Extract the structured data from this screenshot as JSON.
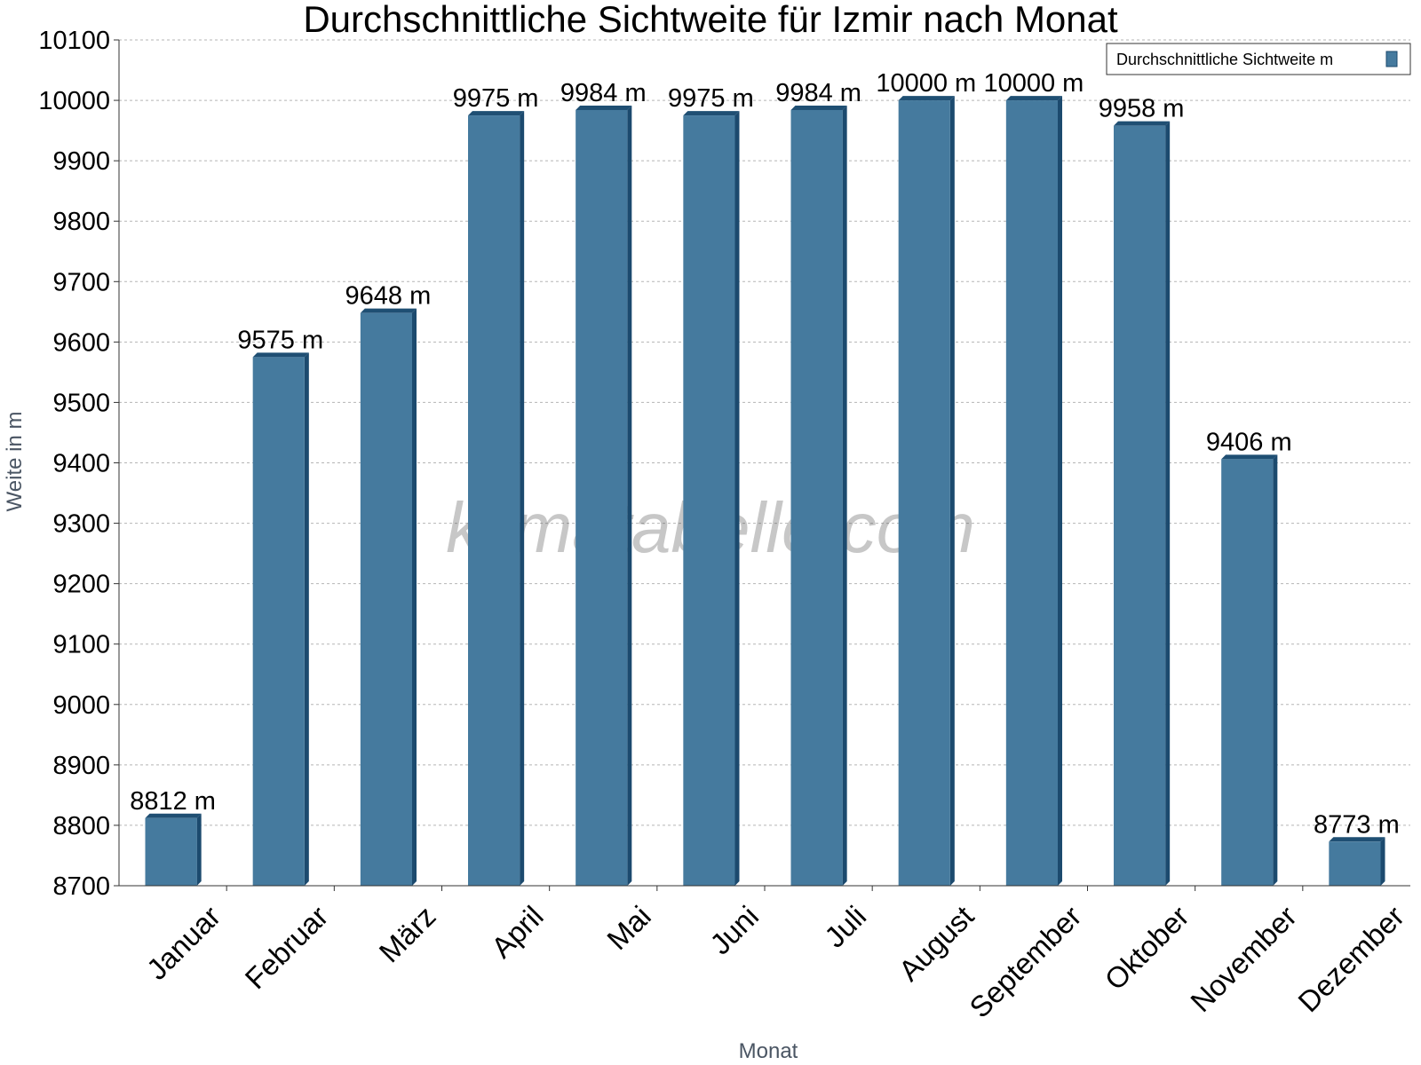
{
  "chart_data": {
    "type": "bar",
    "title": "Durchschnittliche Sichtweite für Izmir nach Monat",
    "xlabel": "Monat",
    "ylabel": "Weite in m",
    "categories": [
      "Januar",
      "Februar",
      "März",
      "April",
      "Mai",
      "Juni",
      "Juli",
      "August",
      "September",
      "Oktober",
      "November",
      "Dezember"
    ],
    "series": [
      {
        "name": "Durchschnittliche Sichtweite m",
        "values": [
          8812,
          9575,
          9648,
          9975,
          9984,
          9975,
          9984,
          10000,
          10000,
          9958,
          9406,
          8773
        ],
        "labels": [
          "8812 m",
          "9575 m",
          "9648 m",
          "9975 m",
          "9984 m",
          "9975 m",
          "9984 m",
          "10000 m",
          "10000 m",
          "9958 m",
          "9406 m",
          "8773 m"
        ]
      }
    ],
    "ylim": [
      8700,
      10100
    ],
    "yticks": [
      8700,
      8800,
      8900,
      9000,
      9100,
      9200,
      9300,
      9400,
      9500,
      9600,
      9700,
      9800,
      9900,
      10000,
      10100
    ],
    "grid": true,
    "legend_position": "top-right"
  },
  "watermark": "klimatabelle.com",
  "colors": {
    "bar_front": "#457a9e",
    "bar_side": "#1c4a6e",
    "bar_top": "#1f4f73",
    "grid": "#b5b5b5",
    "axis": "#333333"
  }
}
